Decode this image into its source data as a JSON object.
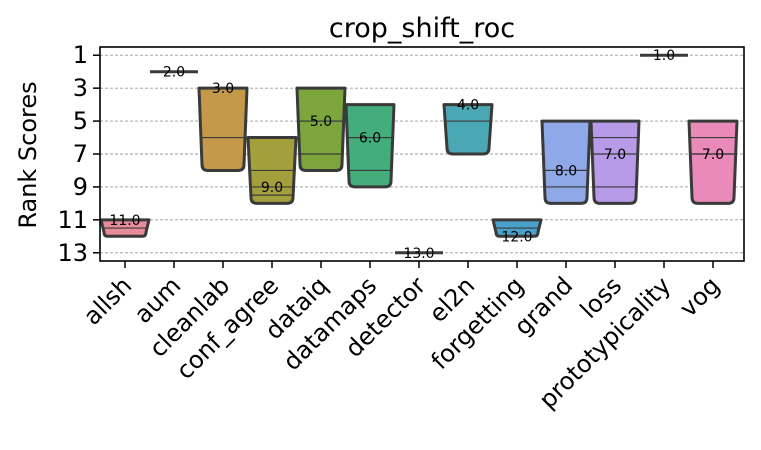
{
  "chart_data": {
    "type": "violin",
    "title": "crop_shift_roc",
    "xlabel": "",
    "ylabel": "Rank Scores",
    "ylim": [
      13.5,
      0.5
    ],
    "yticks": [
      1,
      3,
      5,
      7,
      9,
      11,
      13
    ],
    "grid": "horizontal dashed",
    "categories": [
      "allsh",
      "aum",
      "cleanlab",
      "conf_agree",
      "dataiq",
      "datamaps",
      "detector",
      "el2n",
      "forgetting",
      "grand",
      "loss",
      "prototypicality",
      "vog"
    ],
    "series": [
      {
        "name": "allsh",
        "color": "#e78a9a",
        "min": 11,
        "max": 12,
        "median": 11.0,
        "q1": 11,
        "q3": 11.5,
        "label": "11.0"
      },
      {
        "name": "aum",
        "color": "#d98c5a",
        "min": 2,
        "max": 2,
        "median": 2.0,
        "q1": 2,
        "q3": 2,
        "label": "2.0"
      },
      {
        "name": "cleanlab",
        "color": "#c49a4a",
        "min": 3,
        "max": 8,
        "median": 3.0,
        "q1": 3,
        "q3": 6,
        "label": "3.0"
      },
      {
        "name": "conf_agree",
        "color": "#a3a03c",
        "min": 6,
        "max": 10,
        "median": 9.0,
        "q1": 8,
        "q3": 9.5,
        "label": "9.0"
      },
      {
        "name": "dataiq",
        "color": "#7ca63c",
        "min": 3,
        "max": 8,
        "median": 5.0,
        "q1": 5,
        "q3": 7,
        "label": "5.0"
      },
      {
        "name": "datamaps",
        "color": "#44ad7c",
        "min": 4,
        "max": 9,
        "median": 6.0,
        "q1": 6,
        "q3": 8,
        "label": "6.0"
      },
      {
        "name": "detector",
        "color": "#4aada4",
        "min": 13,
        "max": 13,
        "median": 13.0,
        "q1": 13,
        "q3": 13,
        "label": "13.0"
      },
      {
        "name": "el2n",
        "color": "#4aa8b4",
        "min": 4,
        "max": 7,
        "median": 4.0,
        "q1": 4,
        "q3": 5,
        "label": "4.0"
      },
      {
        "name": "forgetting",
        "color": "#4aa2cc",
        "min": 11,
        "max": 12,
        "median": 12.0,
        "q1": 11.5,
        "q3": 12,
        "label": "12.0"
      },
      {
        "name": "grand",
        "color": "#8ea8e8",
        "min": 5,
        "max": 10,
        "median": 8.0,
        "q1": 8,
        "q3": 9,
        "label": "8.0"
      },
      {
        "name": "loss",
        "color": "#b79be8",
        "min": 5,
        "max": 10,
        "median": 7.0,
        "q1": 6,
        "q3": 9,
        "label": "7.0"
      },
      {
        "name": "prototypicality",
        "color": "#dc8ad0",
        "min": 1,
        "max": 1,
        "median": 1.0,
        "q1": 1,
        "q3": 1,
        "label": "1.0"
      },
      {
        "name": "vog",
        "color": "#e98ab8",
        "min": 5,
        "max": 10,
        "median": 7.0,
        "q1": 6,
        "q3": 7,
        "label": "7.0"
      }
    ]
  }
}
